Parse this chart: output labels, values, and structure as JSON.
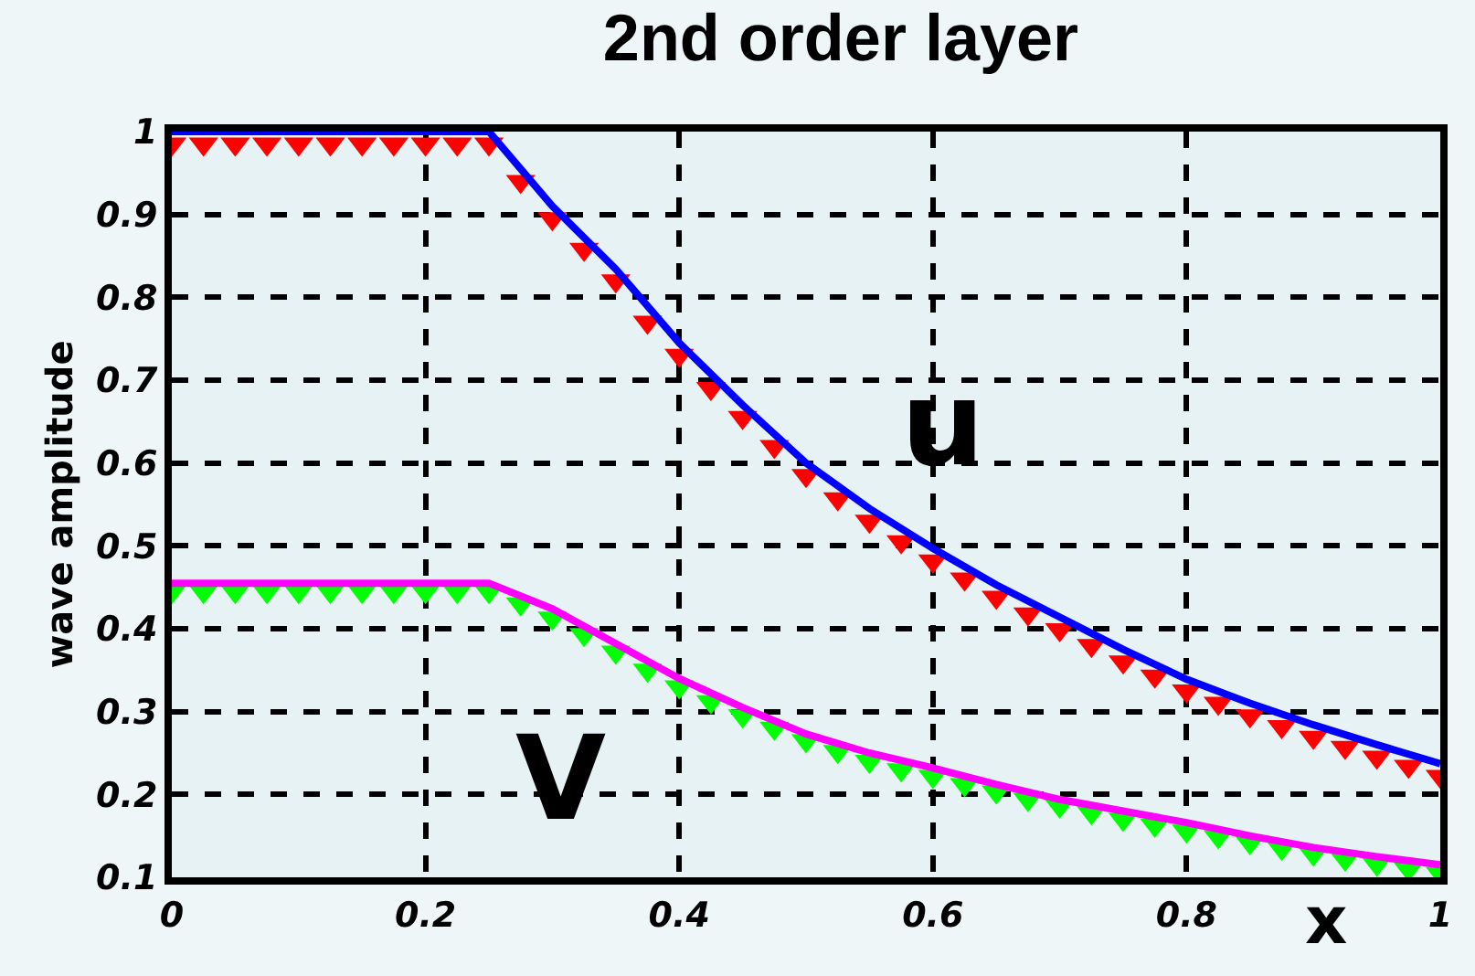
{
  "chart_data": {
    "type": "line",
    "title": "2nd order layer",
    "xlabel": "x",
    "ylabel": "wave amplitude",
    "xlim": [
      0,
      1
    ],
    "ylim": [
      0.1,
      1
    ],
    "xticks": [
      0,
      0.2,
      0.4,
      0.6,
      0.8,
      1
    ],
    "yticks": [
      0.1,
      0.2,
      0.3,
      0.4,
      0.5,
      0.6,
      0.7,
      0.8,
      0.9,
      1
    ],
    "grid": true,
    "series": [
      {
        "type": "scatter",
        "marker": "triangle",
        "color": "#ff0000",
        "x": [
          0,
          0.025,
          0.05,
          0.075,
          0.1,
          0.125,
          0.15,
          0.175,
          0.2,
          0.225,
          0.25,
          0.275,
          0.3,
          0.325,
          0.35,
          0.375,
          0.4,
          0.425,
          0.45,
          0.475,
          0.5,
          0.525,
          0.55,
          0.575,
          0.6,
          0.625,
          0.65,
          0.675,
          0.7,
          0.725,
          0.75,
          0.775,
          0.8,
          0.825,
          0.85,
          0.875,
          0.9,
          0.925,
          0.95,
          0.975,
          1
        ],
        "values": [
          0.985,
          0.985,
          0.985,
          0.985,
          0.985,
          0.985,
          0.985,
          0.985,
          0.985,
          0.985,
          0.985,
          0.94,
          0.895,
          0.858,
          0.82,
          0.77,
          0.73,
          0.69,
          0.655,
          0.62,
          0.585,
          0.557,
          0.53,
          0.505,
          0.482,
          0.46,
          0.438,
          0.418,
          0.399,
          0.38,
          0.36,
          0.343,
          0.325,
          0.31,
          0.295,
          0.282,
          0.269,
          0.257,
          0.245,
          0.234,
          0.222
        ]
      },
      {
        "name": "u",
        "color": "#0000ff",
        "x": [
          0,
          0.05,
          0.1,
          0.15,
          0.2,
          0.25,
          0.3,
          0.35,
          0.4,
          0.45,
          0.5,
          0.55,
          0.6,
          0.65,
          0.7,
          0.75,
          0.8,
          0.85,
          0.9,
          0.95,
          1
        ],
        "values": [
          1,
          1,
          1,
          1,
          1,
          1,
          0.91,
          0.834,
          0.745,
          0.67,
          0.6,
          0.545,
          0.497,
          0.453,
          0.414,
          0.375,
          0.339,
          0.31,
          0.284,
          0.26,
          0.237
        ]
      },
      {
        "type": "scatter",
        "marker": "triangle",
        "color": "#00ff00",
        "x": [
          0,
          0.025,
          0.05,
          0.075,
          0.1,
          0.125,
          0.15,
          0.175,
          0.2,
          0.225,
          0.25,
          0.275,
          0.3,
          0.325,
          0.35,
          0.375,
          0.4,
          0.425,
          0.45,
          0.475,
          0.5,
          0.525,
          0.55,
          0.575,
          0.6,
          0.625,
          0.65,
          0.675,
          0.7,
          0.725,
          0.75,
          0.775,
          0.8,
          0.825,
          0.85,
          0.875,
          0.9,
          0.925,
          0.95,
          0.975,
          1
        ],
        "values": [
          0.445,
          0.445,
          0.445,
          0.445,
          0.445,
          0.445,
          0.445,
          0.445,
          0.445,
          0.445,
          0.445,
          0.43,
          0.413,
          0.393,
          0.372,
          0.35,
          0.33,
          0.312,
          0.295,
          0.28,
          0.265,
          0.252,
          0.24,
          0.23,
          0.222,
          0.212,
          0.203,
          0.194,
          0.186,
          0.178,
          0.17,
          0.163,
          0.156,
          0.149,
          0.142,
          0.135,
          0.128,
          0.122,
          0.116,
          0.11,
          0.105
        ]
      },
      {
        "name": "V",
        "color": "#ff00ff",
        "x": [
          0,
          0.05,
          0.1,
          0.15,
          0.2,
          0.25,
          0.3,
          0.35,
          0.4,
          0.45,
          0.5,
          0.55,
          0.6,
          0.65,
          0.7,
          0.75,
          0.8,
          0.85,
          0.9,
          0.95,
          1
        ],
        "values": [
          0.455,
          0.455,
          0.455,
          0.455,
          0.455,
          0.455,
          0.424,
          0.382,
          0.34,
          0.305,
          0.273,
          0.25,
          0.232,
          0.212,
          0.194,
          0.18,
          0.166,
          0.15,
          0.136,
          0.125,
          0.115
        ]
      }
    ]
  }
}
